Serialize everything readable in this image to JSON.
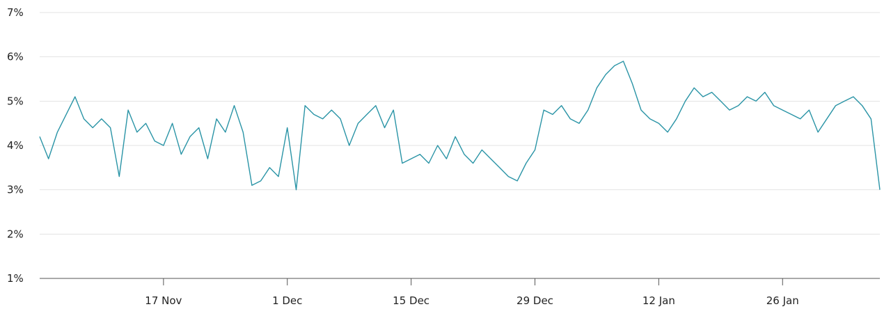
{
  "chart_data": {
    "type": "line",
    "title": "",
    "xlabel": "",
    "ylabel": "",
    "x_range": [
      "2024-11-03",
      "2025-02-06"
    ],
    "ylim": [
      1,
      7
    ],
    "y_ticks": [
      1,
      2,
      3,
      4,
      5,
      6,
      7
    ],
    "y_tick_labels": [
      "1%",
      "2%",
      "3%",
      "4%",
      "5%",
      "6%",
      "7%"
    ],
    "x_ticks": [
      "2024-11-17",
      "2024-12-01",
      "2024-12-15",
      "2024-12-29",
      "2025-01-12",
      "2025-01-26"
    ],
    "x_tick_labels": [
      "17 Nov",
      "1 Dec",
      "15 Dec",
      "29 Dec",
      "12 Jan",
      "26 Jan"
    ],
    "grid": "horizontal",
    "line_color": "#2a94a6",
    "series": [
      {
        "x": [
          "2024-11-03",
          "2024-11-04",
          "2024-11-05",
          "2024-11-06",
          "2024-11-07",
          "2024-11-08",
          "2024-11-09",
          "2024-11-10",
          "2024-11-11",
          "2024-11-12",
          "2024-11-13",
          "2024-11-14",
          "2024-11-15",
          "2024-11-16",
          "2024-11-17",
          "2024-11-18",
          "2024-11-19",
          "2024-11-20",
          "2024-11-21",
          "2024-11-22",
          "2024-11-23",
          "2024-11-24",
          "2024-11-25",
          "2024-11-26",
          "2024-11-27",
          "2024-11-28",
          "2024-11-29",
          "2024-11-30",
          "2024-12-01",
          "2024-12-02",
          "2024-12-03",
          "2024-12-04",
          "2024-12-05",
          "2024-12-06",
          "2024-12-07",
          "2024-12-08",
          "2024-12-09",
          "2024-12-10",
          "2024-12-11",
          "2024-12-12",
          "2024-12-13",
          "2024-12-14",
          "2024-12-15",
          "2024-12-16",
          "2024-12-17",
          "2024-12-18",
          "2024-12-19",
          "2024-12-20",
          "2024-12-21",
          "2024-12-22",
          "2024-12-23",
          "2024-12-24",
          "2024-12-25",
          "2024-12-26",
          "2024-12-27",
          "2024-12-28",
          "2024-12-29",
          "2024-12-30",
          "2024-12-31",
          "2025-01-01",
          "2025-01-02",
          "2025-01-03",
          "2025-01-04",
          "2025-01-05",
          "2025-01-06",
          "2025-01-07",
          "2025-01-08",
          "2025-01-09",
          "2025-01-10",
          "2025-01-11",
          "2025-01-12",
          "2025-01-13",
          "2025-01-14",
          "2025-01-15",
          "2025-01-16",
          "2025-01-17",
          "2025-01-18",
          "2025-01-19",
          "2025-01-20",
          "2025-01-21",
          "2025-01-22",
          "2025-01-23",
          "2025-01-24",
          "2025-01-25",
          "2025-01-26",
          "2025-01-27",
          "2025-01-28",
          "2025-01-29",
          "2025-01-30",
          "2025-01-31",
          "2025-02-01",
          "2025-02-02",
          "2025-02-03",
          "2025-02-04",
          "2025-02-05",
          "2025-02-06"
        ],
        "values": [
          4.2,
          3.7,
          4.3,
          4.7,
          5.1,
          4.6,
          4.4,
          4.6,
          4.4,
          3.3,
          4.8,
          4.3,
          4.5,
          4.1,
          4.0,
          4.5,
          3.8,
          4.2,
          4.4,
          3.7,
          4.6,
          4.3,
          4.9,
          4.3,
          3.1,
          3.2,
          3.5,
          3.3,
          4.4,
          3.0,
          4.9,
          4.7,
          4.6,
          4.8,
          4.6,
          4.0,
          4.5,
          4.7,
          4.9,
          4.4,
          4.8,
          3.6,
          3.7,
          3.8,
          3.6,
          4.0,
          3.7,
          4.2,
          3.8,
          3.6,
          3.9,
          3.7,
          3.5,
          3.3,
          3.2,
          3.6,
          3.9,
          4.8,
          4.7,
          4.9,
          4.6,
          4.5,
          4.8,
          5.3,
          5.6,
          5.8,
          5.9,
          5.4,
          4.8,
          4.6,
          4.5,
          4.3,
          4.6,
          5.0,
          5.3,
          5.1,
          5.2,
          5.0,
          4.8,
          4.9,
          5.1,
          5.0,
          5.2,
          4.9,
          4.8,
          4.7,
          4.6,
          4.8,
          4.3,
          4.6,
          4.9,
          5.0,
          5.1,
          4.9,
          4.6,
          3.0
        ]
      }
    ]
  }
}
